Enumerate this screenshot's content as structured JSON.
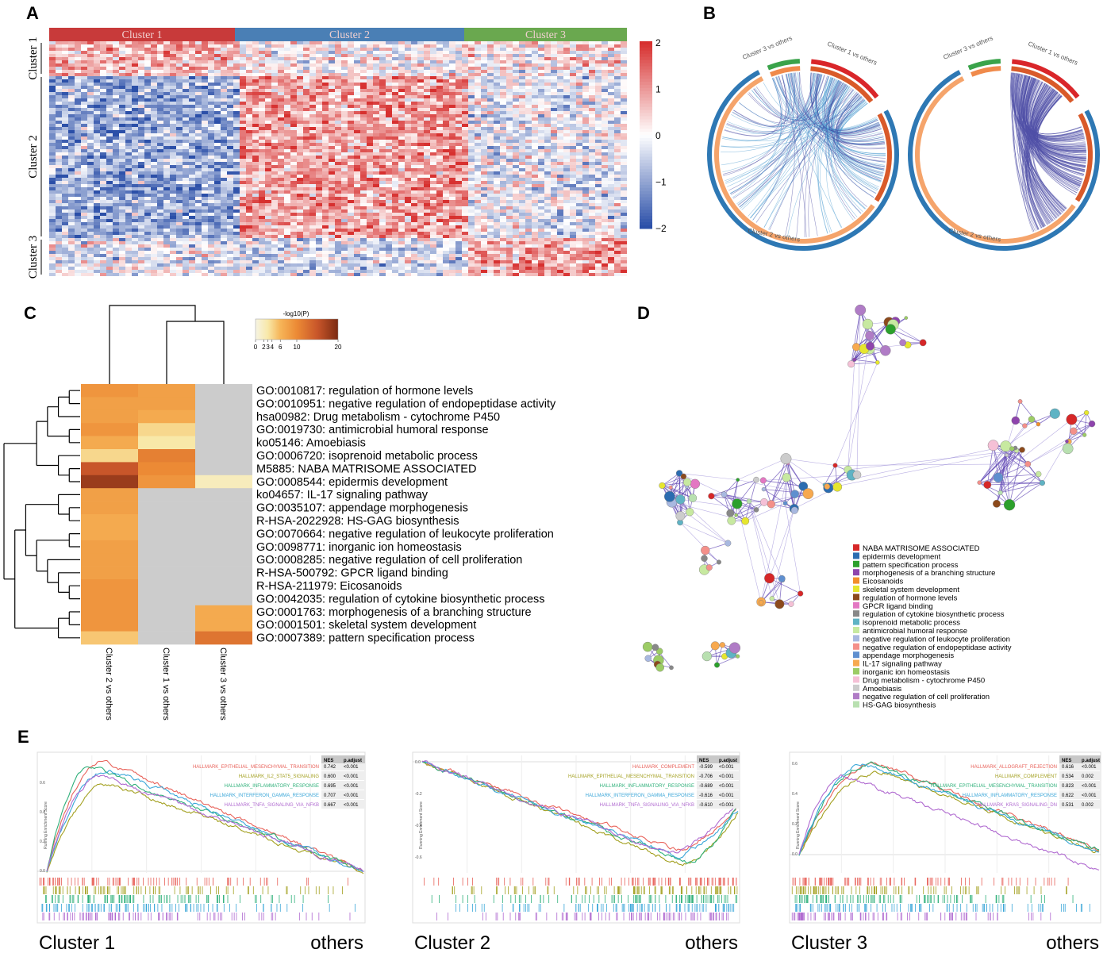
{
  "panel_labels": [
    "A",
    "B",
    "C",
    "D",
    "E"
  ],
  "A": {
    "column_clusters": [
      "Cluster 1",
      "Cluster 2",
      "Cluster 3"
    ],
    "row_clusters": [
      "Cluster 1",
      "Cluster 2",
      "Cluster 3"
    ],
    "colorbar_ticks": [
      "2",
      "1",
      "0",
      "−1",
      "−2"
    ]
  },
  "B": {
    "diagrams": [
      {
        "labels": [
          "Cluster 3 vs others",
          "Cluster 1 vs others",
          "Cluster 2 vs others"
        ]
      },
      {
        "labels": [
          "Cluster 3 vs others",
          "Cluster 1 vs others",
          "Cluster 2 vs others"
        ]
      }
    ]
  },
  "C": {
    "colorbar_title": "-log10(P)",
    "colorbar_ticks": [
      0,
      2,
      3,
      4,
      6,
      10,
      20
    ],
    "columns": [
      "Cluster 2 vs others",
      "Cluster 1 vs others",
      "Cluster 3 vs others"
    ],
    "terms": [
      "GO:0010817: regulation of hormone levels",
      "GO:0010951: negative regulation of endopeptidase activity",
      "hsa00982: Drug metabolism - cytochrome P450",
      "GO:0019730: antimicrobial humoral response",
      "ko05146: Amoebiasis",
      "GO:0006720: isoprenoid metabolic process",
      "M5885: NABA MATRISOME ASSOCIATED",
      "GO:0008544: epidermis development",
      "ko04657: IL-17 signaling pathway",
      "GO:0035107: appendage morphogenesis",
      "R-HSA-2022928: HS-GAG biosynthesis",
      "GO:0070664: negative regulation of leukocyte proliferation",
      "GO:0098771: inorganic ion homeostasis",
      "GO:0008285: negative regulation of cell proliferation",
      "R-HSA-500792: GPCR ligand binding",
      "R-HSA-211979: Eicosanoids",
      "GO:0042035: regulation of cytokine biosynthetic process",
      "GO:0001763: morphogenesis of a branching structure",
      "GO:0001501: skeletal system development",
      "GO:0007389: pattern specification process"
    ],
    "values": [
      [
        9,
        8,
        null
      ],
      [
        8,
        8,
        null
      ],
      [
        8,
        7,
        null
      ],
      [
        9,
        4,
        null
      ],
      [
        7,
        3,
        null
      ],
      [
        4,
        11,
        null
      ],
      [
        15,
        10,
        null
      ],
      [
        18,
        9,
        2
      ],
      [
        8,
        null,
        null
      ],
      [
        8,
        null,
        null
      ],
      [
        7,
        null,
        null
      ],
      [
        7,
        null,
        null
      ],
      [
        8,
        null,
        null
      ],
      [
        8,
        null,
        null
      ],
      [
        8,
        null,
        null
      ],
      [
        9,
        null,
        null
      ],
      [
        9,
        null,
        null
      ],
      [
        9,
        null,
        7
      ],
      [
        9,
        null,
        7
      ],
      [
        5,
        null,
        12
      ]
    ]
  },
  "D": {
    "legend": [
      {
        "label": "NABA MATRISOME ASSOCIATED",
        "color": "#d62728"
      },
      {
        "label": "epidermis development",
        "color": "#2b6cb0"
      },
      {
        "label": "pattern specification process",
        "color": "#2ca02c"
      },
      {
        "label": "morphogenesis of a branching structure",
        "color": "#8e44ad"
      },
      {
        "label": "Eicosanoids",
        "color": "#f28e2b"
      },
      {
        "label": "skeletal system development",
        "color": "#e6e62e"
      },
      {
        "label": "regulation of hormone levels",
        "color": "#8c4a1c"
      },
      {
        "label": "GPCR ligand binding",
        "color": "#e377c2"
      },
      {
        "label": "regulation of cytokine biosynthetic process",
        "color": "#888888"
      },
      {
        "label": "isoprenoid metabolic process",
        "color": "#5fb3c4"
      },
      {
        "label": "antimicrobial humoral response",
        "color": "#c7e9a0"
      },
      {
        "label": "negative regulation of leukocyte proliferation",
        "color": "#a8b8e0"
      },
      {
        "label": "negative regulation of endopeptidase activity",
        "color": "#f4908a"
      },
      {
        "label": "appendage morphogenesis",
        "color": "#5f8fcf"
      },
      {
        "label": "IL-17 signaling pathway",
        "color": "#f7a94f"
      },
      {
        "label": "inorganic ion homeostasis",
        "color": "#9ccc65"
      },
      {
        "label": "Drug metabolism - cytochrome P450",
        "color": "#f5c0d6"
      },
      {
        "label": "Amoebiasis",
        "color": "#cccccc"
      },
      {
        "label": "negative regulation of cell proliferation",
        "color": "#b07cc6"
      },
      {
        "label": "HS-GAG biosynthesis",
        "color": "#b8e0b0"
      }
    ]
  },
  "E": {
    "table_header": [
      "NES",
      "p.adjust"
    ],
    "y_axis_label": "Running Enrichment Score",
    "plots": [
      {
        "title": "Cluster 1",
        "end_label": "others",
        "y_ticks": [
          "0.6",
          "0.4",
          "0.2",
          "0.0"
        ],
        "rows": [
          {
            "name": "HALLMARK_EPITHELIAL_MESENCHYMAL_TRANSITION",
            "color": "#e8625a",
            "nes": "0.742",
            "p_adjust": "<0.001"
          },
          {
            "name": "HALLMARK_IL2_STAT5_SIGNALING",
            "color": "#a3a020",
            "nes": "0.600",
            "p_adjust": "<0.001"
          },
          {
            "name": "HALLMARK_INFLAMMATORY_RESPONSE",
            "color": "#2fb07a",
            "nes": "0.695",
            "p_adjust": "<0.001"
          },
          {
            "name": "HALLMARK_INTERFERON_GAMMA_RESPONSE",
            "color": "#3aa6d8",
            "nes": "0.707",
            "p_adjust": "<0.001"
          },
          {
            "name": "HALLMARK_TNFA_SIGNALING_VIA_NFKB",
            "color": "#b06ad0",
            "nes": "0.667",
            "p_adjust": "<0.001"
          }
        ]
      },
      {
        "title": "Cluster 2",
        "end_label": "others",
        "y_ticks": [
          "0.0",
          "-0.2",
          "-0.4",
          "-0.6"
        ],
        "rows": [
          {
            "name": "HALLMARK_COMPLEMENT",
            "color": "#e8625a",
            "nes": "-0.599",
            "p_adjust": "<0.001"
          },
          {
            "name": "HALLMARK_EPITHELIAL_MESENCHYMAL_TRANSITION",
            "color": "#a3a020",
            "nes": "-0.706",
            "p_adjust": "<0.001"
          },
          {
            "name": "HALLMARK_INFLAMMATORY_RESPONSE",
            "color": "#2fb07a",
            "nes": "-0.689",
            "p_adjust": "<0.001"
          },
          {
            "name": "HALLMARK_INTERFERON_GAMMA_RESPONSE",
            "color": "#3aa6d8",
            "nes": "-0.616",
            "p_adjust": "<0.001"
          },
          {
            "name": "HALLMARK_TNFA_SIGNALING_VIA_NFKB",
            "color": "#b06ad0",
            "nes": "-0.610",
            "p_adjust": "<0.001"
          }
        ]
      },
      {
        "title": "Cluster 3",
        "end_label": "others",
        "y_ticks": [
          "0.6",
          "0.4",
          "0.2",
          "0.0"
        ],
        "rows": [
          {
            "name": "HALLMARK_ALLOGRAFT_REJECTION",
            "color": "#e8625a",
            "nes": "0.616",
            "p_adjust": "<0.001"
          },
          {
            "name": "HALLMARK_COMPLEMENT",
            "color": "#a3a020",
            "nes": "0.534",
            "p_adjust": "0.002"
          },
          {
            "name": "HALLMARK_EPITHELIAL_MESENCHYMAL_TRANSITION",
            "color": "#2fb07a",
            "nes": "0.823",
            "p_adjust": "<0.001"
          },
          {
            "name": "HALLMARK_INFLAMMATORY_RESPONSE",
            "color": "#3aa6d8",
            "nes": "0.622",
            "p_adjust": "<0.001"
          },
          {
            "name": "HALLMARK_KRAS_SIGNALING_DN",
            "color": "#b06ad0",
            "nes": "0.531",
            "p_adjust": "0.002"
          }
        ]
      }
    ]
  }
}
